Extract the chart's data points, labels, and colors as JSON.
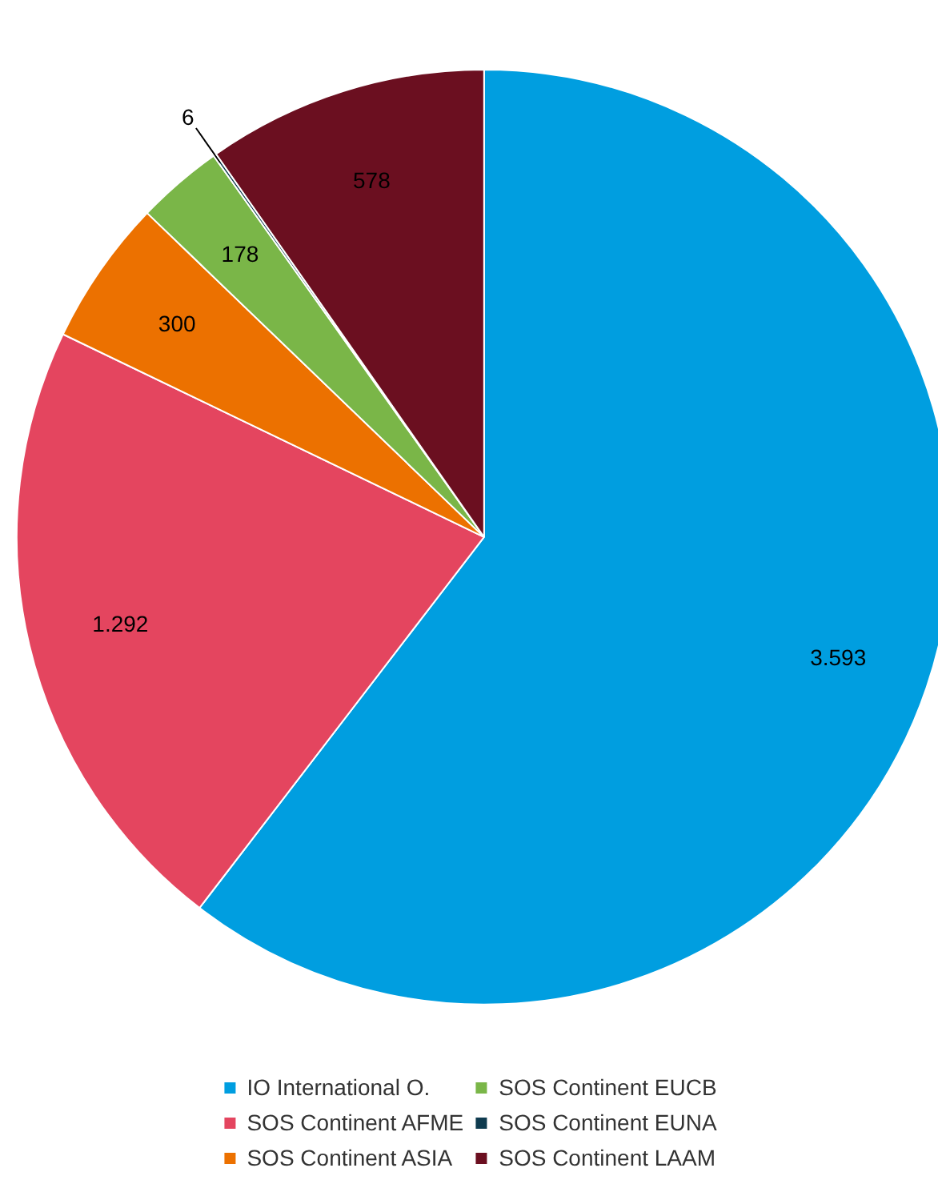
{
  "chart_data": {
    "type": "pie",
    "categories": [
      "IO International O.",
      "SOS Continent AFME",
      "SOS Continent ASIA",
      "SOS Continent EUCB",
      "SOS Continent EUNA",
      "SOS Continent LAAM"
    ],
    "values": [
      3593,
      1292,
      300,
      178,
      6,
      578
    ],
    "value_labels": [
      "3.593",
      "1.292",
      "300",
      "178",
      "6",
      "578"
    ],
    "colors": [
      "#009ee0",
      "#e4455f",
      "#ec7100",
      "#7ab648",
      "#0f3b4f",
      "#6b0f20"
    ],
    "legend": "bottom"
  }
}
